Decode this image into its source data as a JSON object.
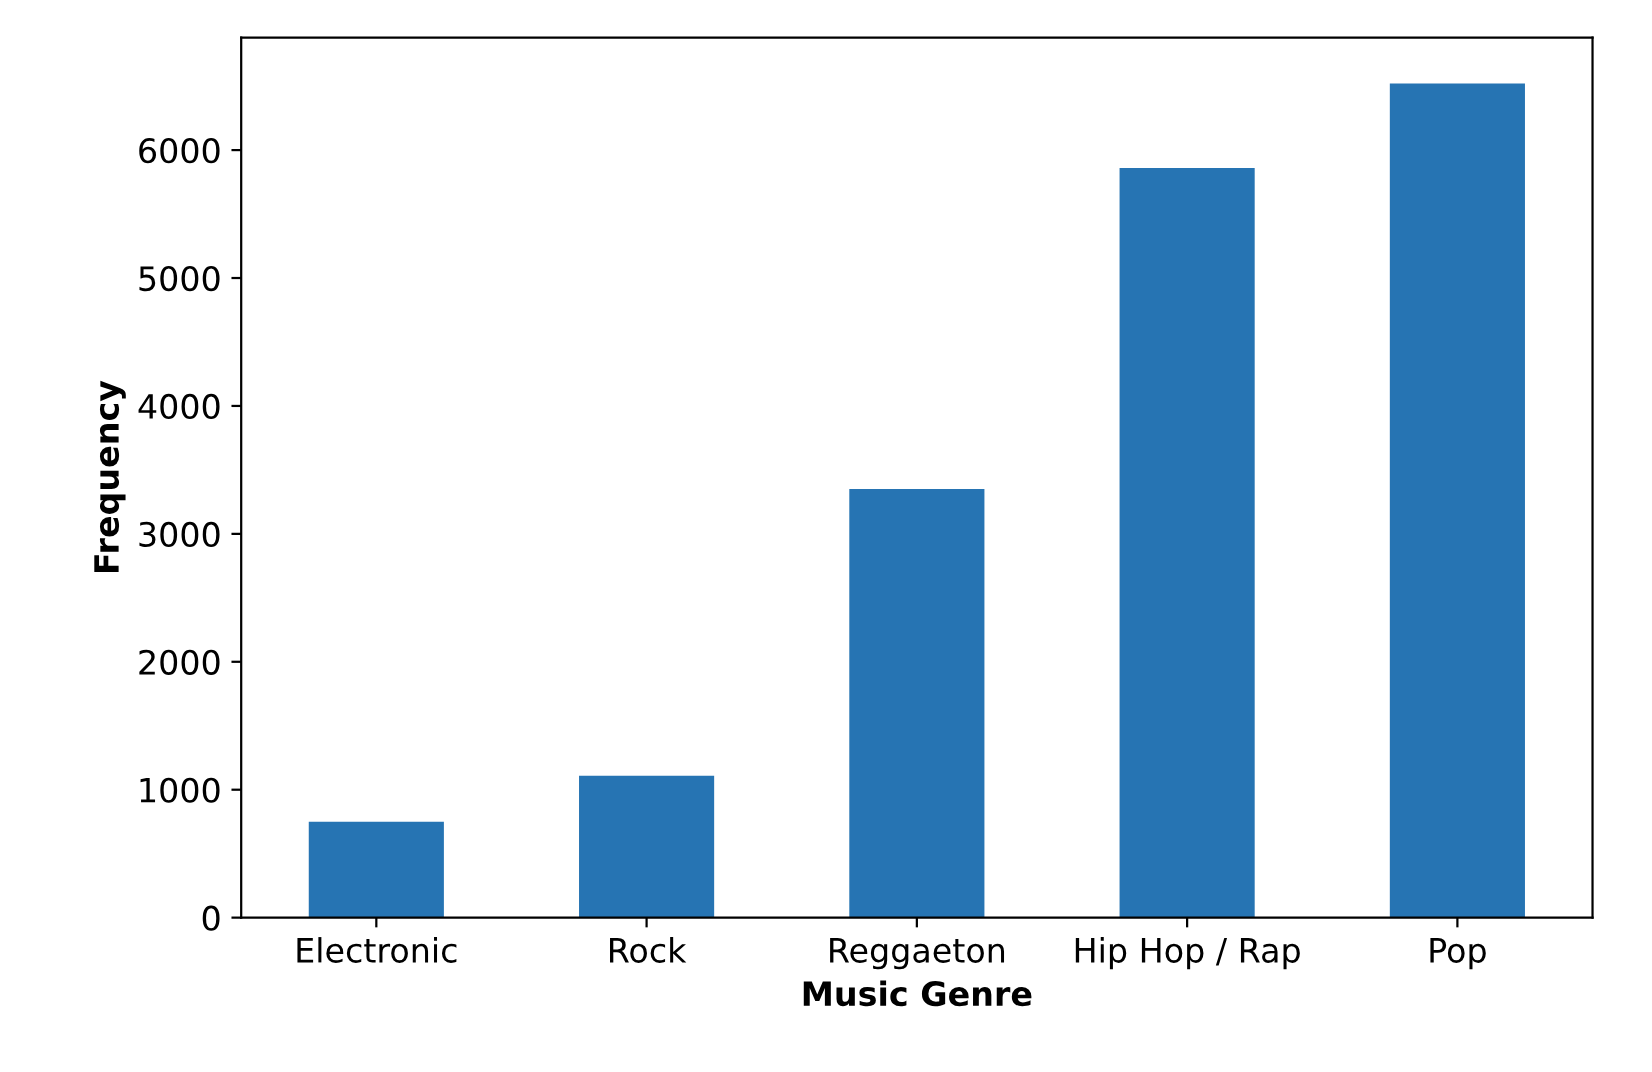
{
  "chart_data": {
    "type": "bar",
    "xlabel": "Music Genre",
    "ylabel": "Frequency",
    "categories": [
      "Electronic",
      "Rock",
      "Reggaeton",
      "Hip Hop / Rap",
      "Pop"
    ],
    "values": [
      750,
      1110,
      3350,
      5860,
      6520
    ],
    "color": "#2674b3",
    "ylim": [
      0,
      6880
    ],
    "yticks": [
      0,
      1000,
      2000,
      3000,
      4000,
      5000,
      6000
    ],
    "grid": false
  }
}
